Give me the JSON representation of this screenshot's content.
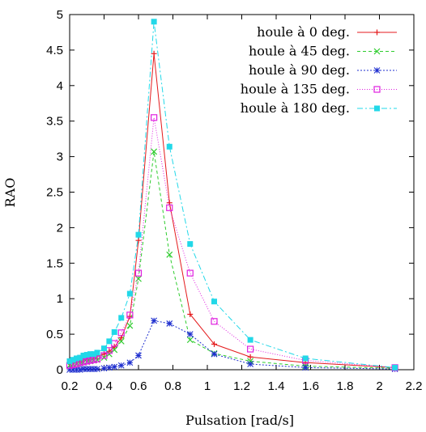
{
  "chart_data": {
    "type": "line",
    "title": "",
    "xlabel": "Pulsation [rad/s]",
    "ylabel": "RAO",
    "xlim": [
      0.2,
      2.2
    ],
    "ylim": [
      0,
      5
    ],
    "x_ticks": [
      0.2,
      0.4,
      0.6,
      0.8,
      1.0,
      1.2,
      1.4,
      1.6,
      1.8,
      2.0,
      2.2
    ],
    "x_tick_labels": [
      "0.2",
      "0.4",
      "0.6",
      "0.8",
      "1",
      "1.2",
      "1.4",
      "1.6",
      "1.8",
      "2",
      "2.2"
    ],
    "y_ticks": [
      0,
      0.5,
      1,
      1.5,
      2,
      2.5,
      3,
      3.5,
      4,
      4.5,
      5
    ],
    "y_tick_labels": [
      "0",
      "0.5",
      "1",
      "1.5",
      "2",
      "2.5",
      "3",
      "3.5",
      "4",
      "4.5",
      "5"
    ],
    "grid": false,
    "legend_position": "top-right",
    "series": [
      {
        "name": "houle à 0 deg.",
        "color": "#e41a1c",
        "marker": "plus",
        "dash": "",
        "x": [
          0.2,
          0.22,
          0.24,
          0.26,
          0.28,
          0.3,
          0.32,
          0.34,
          0.36,
          0.4,
          0.43,
          0.46,
          0.5,
          0.55,
          0.6,
          0.69,
          0.78,
          0.9,
          1.04,
          1.25,
          1.57,
          2.09
        ],
        "values": [
          0.09,
          0.11,
          0.13,
          0.14,
          0.15,
          0.17,
          0.18,
          0.18,
          0.19,
          0.22,
          0.26,
          0.32,
          0.45,
          0.75,
          1.82,
          4.45,
          2.35,
          0.78,
          0.36,
          0.18,
          0.1,
          0.03
        ]
      },
      {
        "name": "houle à 45 deg.",
        "color": "#2ecc2e",
        "marker": "x",
        "dash": "4,3",
        "x": [
          0.2,
          0.22,
          0.24,
          0.26,
          0.28,
          0.3,
          0.32,
          0.34,
          0.36,
          0.4,
          0.43,
          0.46,
          0.5,
          0.55,
          0.6,
          0.69,
          0.78,
          0.9,
          1.04,
          1.25,
          1.57,
          2.09
        ],
        "values": [
          0.06,
          0.07,
          0.08,
          0.09,
          0.1,
          0.11,
          0.12,
          0.13,
          0.14,
          0.17,
          0.22,
          0.28,
          0.4,
          0.62,
          1.28,
          3.07,
          1.62,
          0.42,
          0.23,
          0.12,
          0.05,
          0.02
        ]
      },
      {
        "name": "houle à 90 deg.",
        "color": "#1f2fcf",
        "marker": "star",
        "dash": "2,2",
        "x": [
          0.2,
          0.22,
          0.24,
          0.26,
          0.28,
          0.3,
          0.32,
          0.34,
          0.36,
          0.4,
          0.43,
          0.46,
          0.5,
          0.55,
          0.6,
          0.69,
          0.78,
          0.9,
          1.04,
          1.25,
          1.57,
          2.09
        ],
        "values": [
          0.0,
          0.0,
          0.0,
          0.0,
          0.01,
          0.01,
          0.01,
          0.01,
          0.01,
          0.02,
          0.03,
          0.04,
          0.06,
          0.1,
          0.2,
          0.69,
          0.65,
          0.5,
          0.22,
          0.08,
          0.03,
          0.01
        ]
      },
      {
        "name": "houle à 135 deg.",
        "color": "#e020e0",
        "marker": "square-open",
        "dash": "1,2",
        "x": [
          0.2,
          0.22,
          0.24,
          0.26,
          0.28,
          0.3,
          0.32,
          0.34,
          0.36,
          0.4,
          0.43,
          0.46,
          0.5,
          0.55,
          0.6,
          0.69,
          0.78,
          0.9,
          1.04,
          1.25,
          1.57,
          2.09
        ],
        "values": [
          0.06,
          0.07,
          0.08,
          0.1,
          0.11,
          0.12,
          0.13,
          0.14,
          0.15,
          0.2,
          0.27,
          0.37,
          0.52,
          0.77,
          1.36,
          3.55,
          2.28,
          1.36,
          0.68,
          0.29,
          0.13,
          0.03
        ]
      },
      {
        "name": "houle à 180 deg.",
        "color": "#22d8e8",
        "marker": "square-filled",
        "dash": "7,3,2,3",
        "x": [
          0.2,
          0.22,
          0.24,
          0.26,
          0.28,
          0.3,
          0.32,
          0.34,
          0.36,
          0.4,
          0.43,
          0.46,
          0.5,
          0.55,
          0.6,
          0.69,
          0.78,
          0.9,
          1.04,
          1.25,
          1.57,
          2.09
        ],
        "values": [
          0.12,
          0.14,
          0.16,
          0.17,
          0.2,
          0.21,
          0.22,
          0.22,
          0.24,
          0.3,
          0.4,
          0.53,
          0.73,
          1.07,
          1.9,
          4.9,
          3.14,
          1.77,
          0.96,
          0.42,
          0.16,
          0.03
        ]
      }
    ]
  }
}
